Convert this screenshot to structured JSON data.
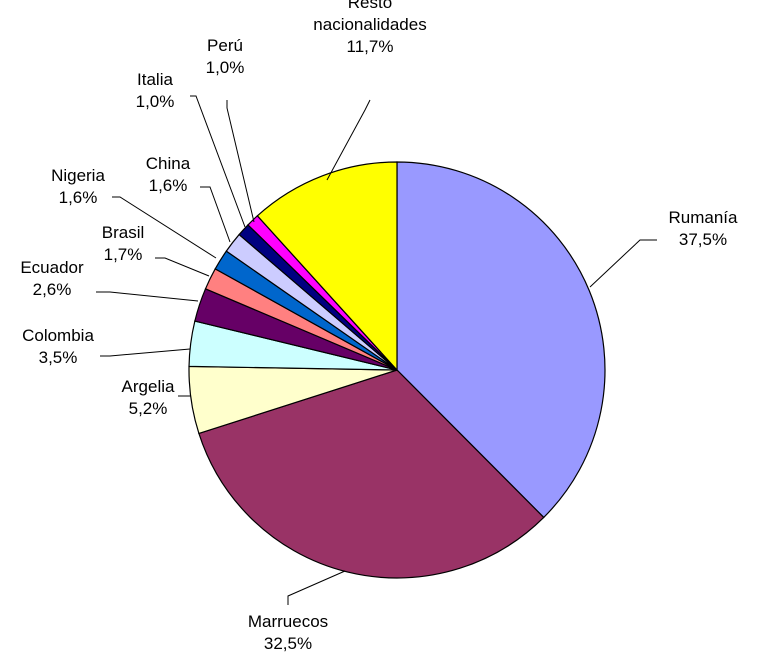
{
  "chart_data": {
    "type": "pie",
    "title": "",
    "slices": [
      {
        "lines": [
          "Rumanía"
        ],
        "value_label": "37,5%",
        "value": 37.5,
        "color": "#9999FF"
      },
      {
        "lines": [
          "Marruecos"
        ],
        "value_label": "32,5%",
        "value": 32.5,
        "color": "#993366"
      },
      {
        "lines": [
          "Argelia"
        ],
        "value_label": "5,2%",
        "value": 5.2,
        "color": "#FFFFCC"
      },
      {
        "lines": [
          "Colombia"
        ],
        "value_label": "3,5%",
        "value": 3.5,
        "color": "#CCFFFF"
      },
      {
        "lines": [
          "Ecuador"
        ],
        "value_label": "2,6%",
        "value": 2.6,
        "color": "#660066"
      },
      {
        "lines": [
          "Brasil"
        ],
        "value_label": "1,7%",
        "value": 1.7,
        "color": "#FF8080"
      },
      {
        "lines": [
          "Nigeria"
        ],
        "value_label": "1,6%",
        "value": 1.6,
        "color": "#0066CC"
      },
      {
        "lines": [
          "China"
        ],
        "value_label": "1,6%",
        "value": 1.6,
        "color": "#CCCCFF"
      },
      {
        "lines": [
          "Italia"
        ],
        "value_label": "1,0%",
        "value": 1.0,
        "color": "#000080"
      },
      {
        "lines": [
          "Perú"
        ],
        "value_label": "1,0%",
        "value": 1.0,
        "color": "#FF00FF"
      },
      {
        "lines": [
          "Resto",
          "nacionalidades"
        ],
        "value_label": "11,7%",
        "value": 11.7,
        "color": "#FFFF00"
      }
    ]
  }
}
